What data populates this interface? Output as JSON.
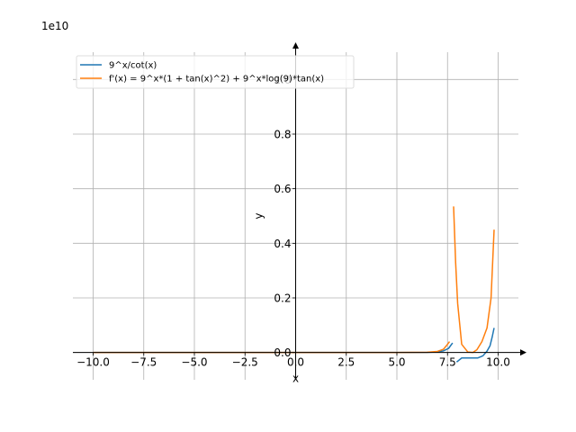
{
  "chart_data": {
    "type": "line",
    "xlabel": "x",
    "ylabel": "y",
    "offset_label": "1e10",
    "xlim": [
      -11,
      11
    ],
    "ylim": [
      -0.1,
      1.1
    ],
    "x_ticks": [
      -10,
      -7.5,
      -5,
      -2.5,
      0,
      2.5,
      5,
      7.5,
      10
    ],
    "x_tick_labels": [
      "−10.0",
      "−7.5",
      "−5.0",
      "−2.5",
      "0.0",
      "2.5",
      "5.0",
      "7.5",
      "10.0"
    ],
    "y_ticks": [
      0,
      0.2,
      0.4,
      0.6,
      0.8,
      1.0
    ],
    "y_tick_labels": [
      "0.0",
      "0.2",
      "0.4",
      "0.6",
      "0.8",
      "1.0"
    ],
    "grid": true,
    "legend_position": "top-left",
    "series": [
      {
        "name": "9^x/cot(x)",
        "color": "#1f77b4",
        "segments": [
          [
            [
              -10,
              0
            ],
            [
              -5,
              0
            ],
            [
              0,
              0
            ],
            [
              5,
              0.0001
            ],
            [
              6.5,
              0.0005
            ],
            [
              7.0,
              0.002
            ],
            [
              7.3,
              0.006
            ],
            [
              7.55,
              0.015
            ],
            [
              7.75,
              0.035
            ]
          ],
          [
            [
              7.95,
              -0.035
            ],
            [
              8.2,
              -0.02
            ],
            [
              8.6,
              -0.02
            ],
            [
              9.0,
              -0.02
            ],
            [
              9.25,
              -0.012
            ],
            [
              9.45,
              0.005
            ],
            [
              9.6,
              0.025
            ],
            [
              9.7,
              0.055
            ],
            [
              9.8,
              0.09
            ]
          ]
        ]
      },
      {
        "name": "f'(x) = 9^x*(1 + tan(x)^2) + 9^x*log(9)*tan(x)",
        "color": "#ff7f0e",
        "segments": [
          [
            [
              -10,
              0
            ],
            [
              -5,
              0
            ],
            [
              0,
              0
            ],
            [
              5,
              0.0002
            ],
            [
              6.5,
              0.001
            ],
            [
              7.0,
              0.004
            ],
            [
              7.3,
              0.012
            ],
            [
              7.5,
              0.03
            ],
            [
              7.6,
              0.04
            ]
          ],
          [
            [
              7.8,
              0.535
            ],
            [
              7.9,
              0.33
            ],
            [
              8.0,
              0.18
            ],
            [
              8.2,
              0.03
            ],
            [
              8.5,
              0.002
            ],
            [
              8.75,
              0.0
            ],
            [
              8.95,
              0.01
            ],
            [
              9.2,
              0.04
            ],
            [
              9.45,
              0.09
            ],
            [
              9.65,
              0.2
            ],
            [
              9.8,
              0.45
            ]
          ]
        ]
      }
    ]
  }
}
